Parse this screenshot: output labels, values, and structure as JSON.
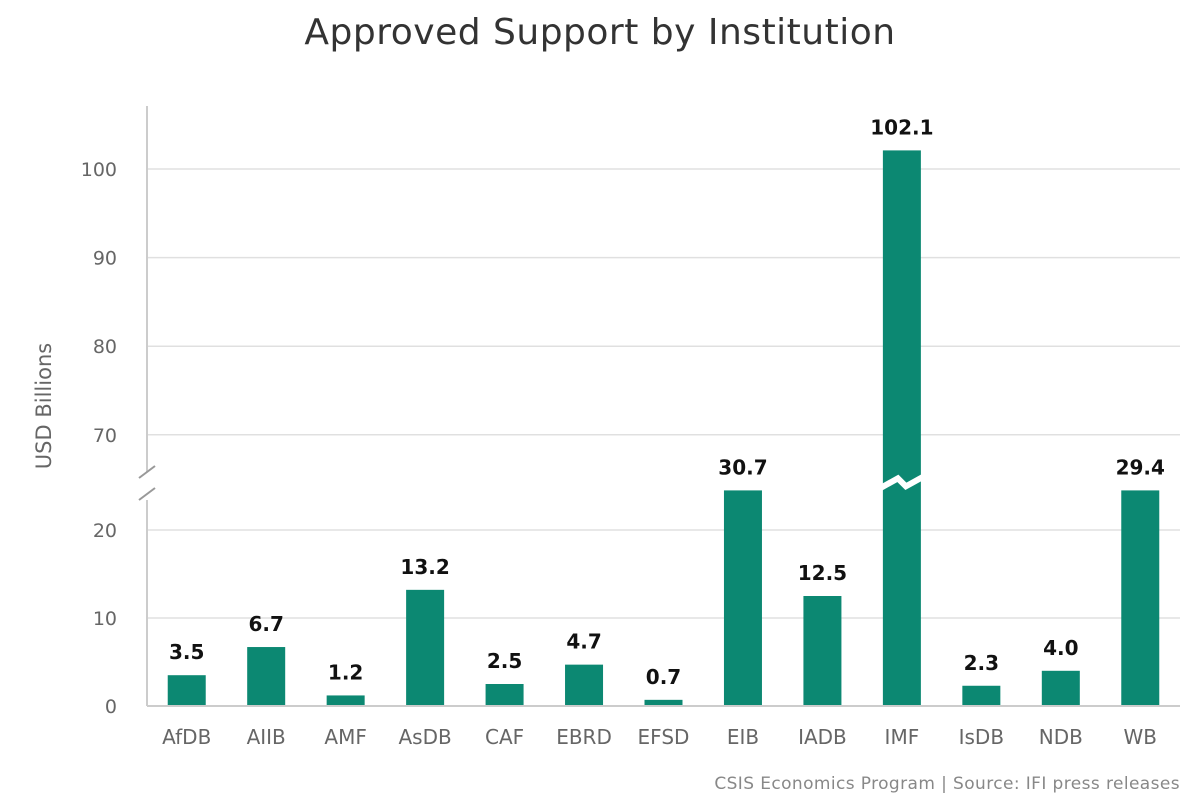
{
  "chart_data": {
    "type": "bar",
    "title": "Approved Support by Institution",
    "ylabel": "USD Billions",
    "xlabel": "",
    "categories": [
      "AfDB",
      "AIIB",
      "AMF",
      "AsDB",
      "CAF",
      "EBRD",
      "EFSD",
      "EIB",
      "IADB",
      "IMF",
      "IsDB",
      "NDB",
      "WB"
    ],
    "values": [
      3.5,
      6.7,
      1.2,
      13.2,
      2.5,
      4.7,
      0.7,
      30.7,
      12.5,
      102.1,
      2.3,
      4.0,
      29.4
    ],
    "value_labels": [
      "3.5",
      "6.7",
      "1.2",
      "13.2",
      "2.5",
      "4.7",
      "0.7",
      "30.7",
      "12.5",
      "102.1",
      "2.3",
      "4.0",
      "29.4"
    ],
    "ylim": [
      0,
      105
    ],
    "axis_break": [
      24.5,
      66
    ],
    "yticks_lower": [
      "0",
      "10",
      "20"
    ],
    "yticks_upper": [
      "70",
      "80",
      "90",
      "100"
    ],
    "bar_color": "#0c8872",
    "grid": true
  },
  "footer": {
    "source": "CSIS Economics Program | Source: IFI press releases"
  }
}
